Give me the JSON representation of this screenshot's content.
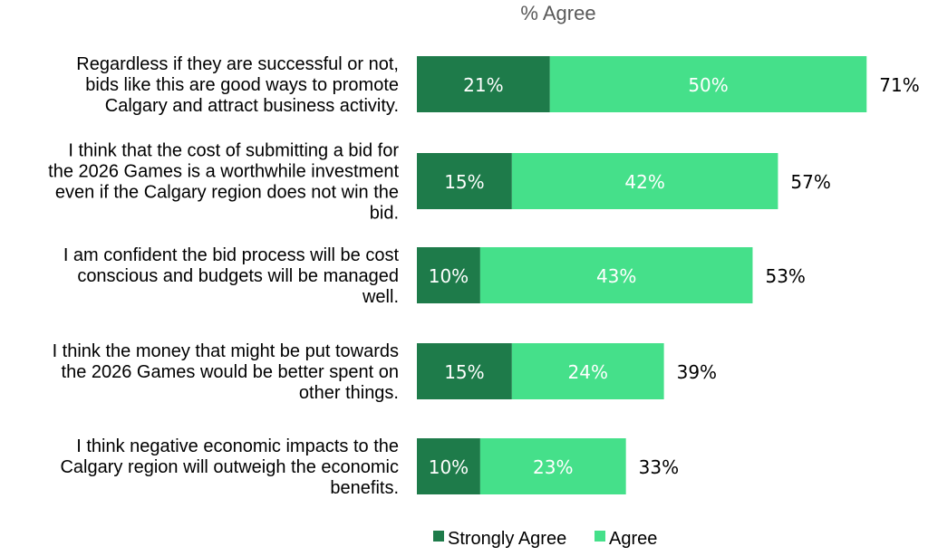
{
  "chart_data": {
    "type": "bar",
    "orientation": "horizontal",
    "stacked": true,
    "title": "% Agree",
    "categories": [
      [
        "Regardless if they are successful or not,",
        "bids like this are good ways to promote",
        "Calgary and attract business activity."
      ],
      [
        "I think that the cost of submitting a bid for",
        "the 2026 Games is a worthwhile investment",
        "even if the Calgary region does not win the",
        "bid."
      ],
      [
        "I am confident the bid process will be cost",
        "conscious and budgets will be managed",
        "well."
      ],
      [
        "I think the money that might be put towards",
        "the 2026 Games would be better spent on",
        "other things."
      ],
      [
        "I think negative economic impacts to the",
        "Calgary region will outweigh the economic",
        "benefits."
      ]
    ],
    "series": [
      {
        "name": "Strongly Agree",
        "color": "#1e7b4a",
        "values": [
          21,
          15,
          10,
          15,
          10
        ],
        "labels": [
          "21%",
          "15%",
          "10%",
          "15%",
          "10%"
        ]
      },
      {
        "name": "Agree",
        "color": "#45e08a",
        "values": [
          50,
          42,
          43,
          24,
          23
        ],
        "labels": [
          "50%",
          "42%",
          "43%",
          "24%",
          "23%"
        ]
      }
    ],
    "totals": [
      71,
      57,
      53,
      39,
      33
    ],
    "total_labels": [
      "71%",
      "57%",
      "53%",
      "39%",
      "33%"
    ],
    "xlim": [
      0,
      100
    ],
    "grid": false,
    "legend_position": "bottom"
  }
}
